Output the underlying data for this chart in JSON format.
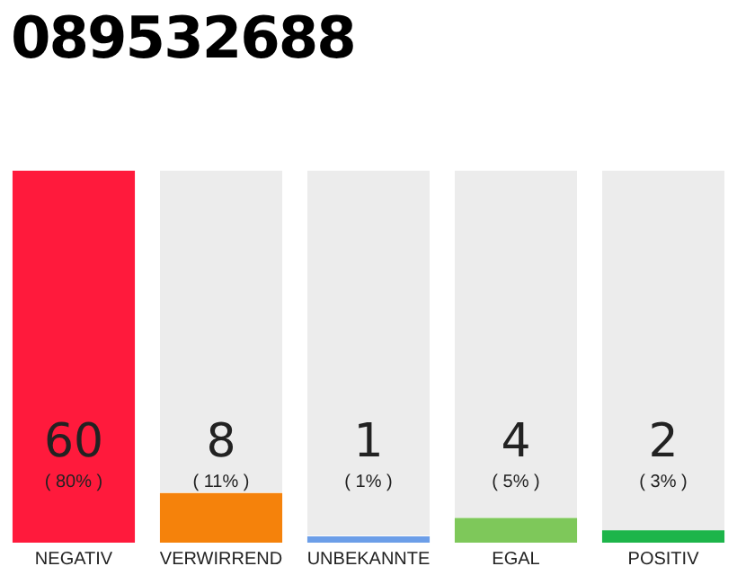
{
  "chart_data": {
    "type": "bar",
    "title": "089532688",
    "categories": [
      "NEGATIV",
      "VERWIRREND",
      "UNBEKANNTE",
      "EGAL",
      "POSITIV"
    ],
    "values": [
      60,
      8,
      1,
      4,
      2
    ],
    "colors": [
      "#ff1a3c",
      "#f5820b",
      "#6c9ee8",
      "#7ec85a",
      "#1db54a"
    ],
    "data_labels": true,
    "annotations": [
      "( 80% )",
      "( 11% )",
      "( 1% )",
      "( 5% )",
      "( 3% )"
    ],
    "grid": false,
    "legend": false
  }
}
